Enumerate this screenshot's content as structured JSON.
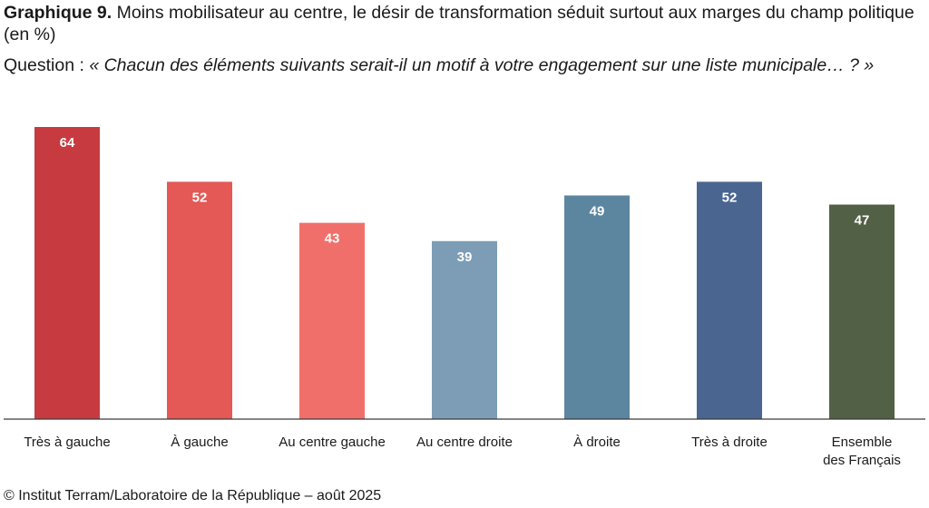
{
  "header": {
    "title_prefix": "Graphique 9.",
    "title_text": "Moins mobilisateur au centre, le désir de transformation séduit surtout aux marges du champ politique (en %)",
    "question_label": "Question :",
    "question_text": "« Chacun des éléments suivants serait-il un motif à votre engagement sur une liste municipale… ? »"
  },
  "chart_data": {
    "type": "bar",
    "categories": [
      "Très à gauche",
      "À gauche",
      "Au centre gauche",
      "Au centre droite",
      "À droite",
      "Très à droite",
      "Ensemble des Français"
    ],
    "values": [
      64,
      52,
      43,
      39,
      49,
      52,
      47
    ],
    "colors": [
      "#c73b40",
      "#e45856",
      "#f16f6a",
      "#7c9db5",
      "#5c86a0",
      "#4a6590",
      "#526046"
    ],
    "data_labels": [
      "64",
      "52",
      "43",
      "39",
      "49",
      "52",
      "47"
    ],
    "ylim": [
      0,
      64
    ],
    "grid": false,
    "legend": "none"
  },
  "source": "© Institut Terram/Laboratoire de la République – août 2025"
}
